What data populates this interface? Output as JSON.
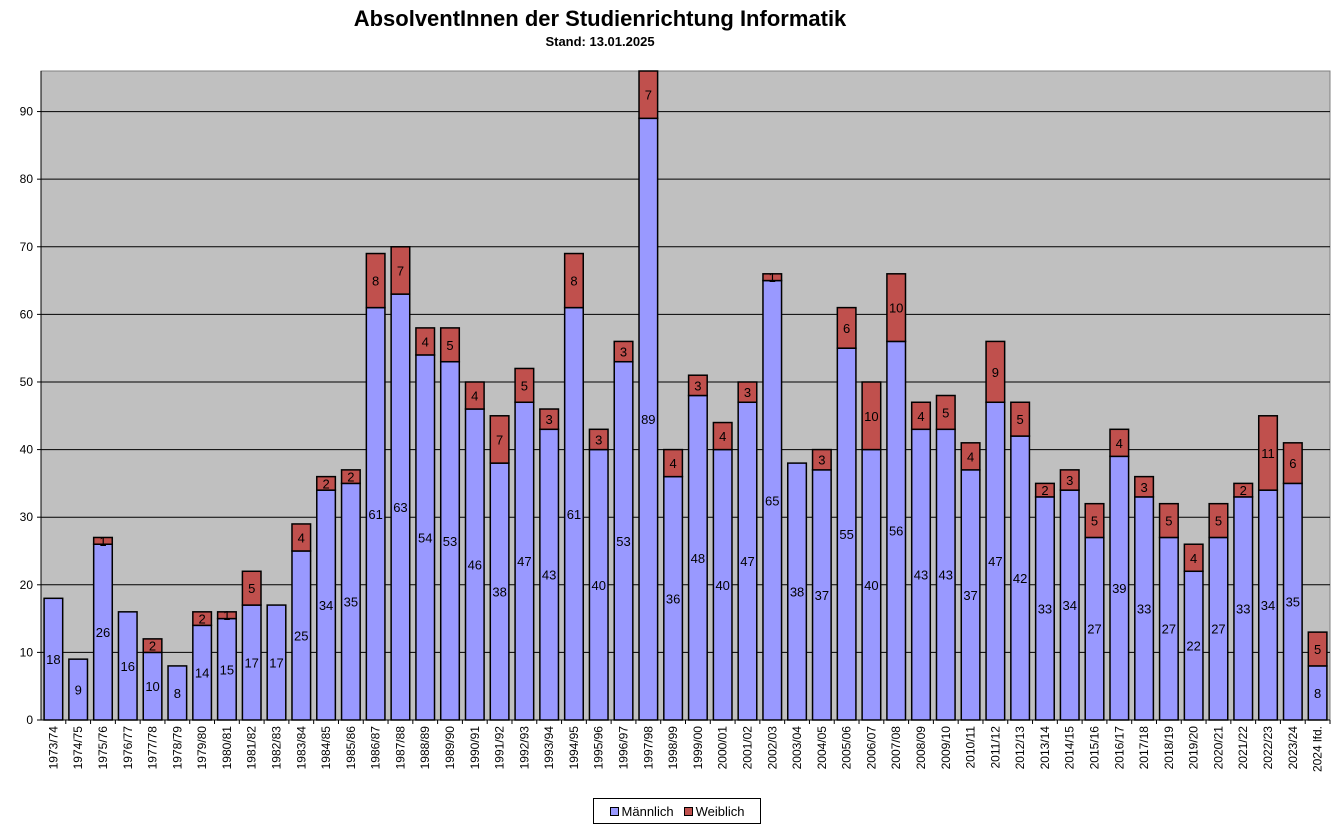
{
  "chart_data": {
    "type": "bar",
    "stacked": true,
    "title": "AbsolventInnen der Studienrichtung Informatik",
    "subtitle": "Stand: 13.01.2025",
    "categories": [
      "1973/74",
      "1974/75",
      "1975/76",
      "1976/77",
      "1977/78",
      "1978/79",
      "1979/80",
      "1980/81",
      "1981/82",
      "1982/83",
      "1983/84",
      "1984/85",
      "1985/86",
      "1986/87",
      "1987/88",
      "1988/89",
      "1989/90",
      "1990/91",
      "1991/92",
      "1992/93",
      "1993/94",
      "1994/95",
      "1995/96",
      "1996/97",
      "1997/98",
      "1998/99",
      "1999/00",
      "2000/01",
      "2001/02",
      "2002/03",
      "2003/04",
      "2004/05",
      "2005/06",
      "2006/07",
      "2007/08",
      "2008/09",
      "2009/10",
      "2010/11",
      "2011/12",
      "2012/13",
      "2013/14",
      "2014/15",
      "2015/16",
      "2016/17",
      "2017/18",
      "2018/19",
      "2019/20",
      "2020/21",
      "2021/22",
      "2022/23",
      "2023/24",
      "2024 lfd."
    ],
    "series": [
      {
        "name": "Männlich",
        "color": "#9999ff",
        "values": [
          18,
          9,
          26,
          16,
          10,
          8,
          14,
          15,
          17,
          17,
          25,
          34,
          35,
          61,
          63,
          54,
          53,
          46,
          38,
          47,
          43,
          61,
          40,
          53,
          89,
          36,
          48,
          40,
          47,
          65,
          38,
          37,
          55,
          40,
          56,
          43,
          43,
          37,
          47,
          42,
          33,
          34,
          27,
          39,
          33,
          27,
          22,
          27,
          33,
          34,
          35,
          8
        ]
      },
      {
        "name": "Weiblich",
        "color": "#c0504d",
        "values": [
          0,
          0,
          1,
          0,
          2,
          0,
          2,
          1,
          5,
          0,
          4,
          2,
          2,
          8,
          7,
          4,
          5,
          4,
          7,
          5,
          3,
          8,
          3,
          3,
          7,
          4,
          3,
          4,
          3,
          1,
          0,
          3,
          6,
          10,
          10,
          4,
          5,
          4,
          9,
          5,
          2,
          3,
          5,
          4,
          3,
          5,
          4,
          5,
          2,
          11,
          6,
          5
        ]
      }
    ],
    "ylim": [
      0,
      96
    ],
    "yticks": [
      0,
      10,
      20,
      30,
      40,
      50,
      60,
      70,
      80,
      90
    ],
    "grid": true,
    "plot_background": "#c0c0c0",
    "legend_position": "bottom-center"
  }
}
